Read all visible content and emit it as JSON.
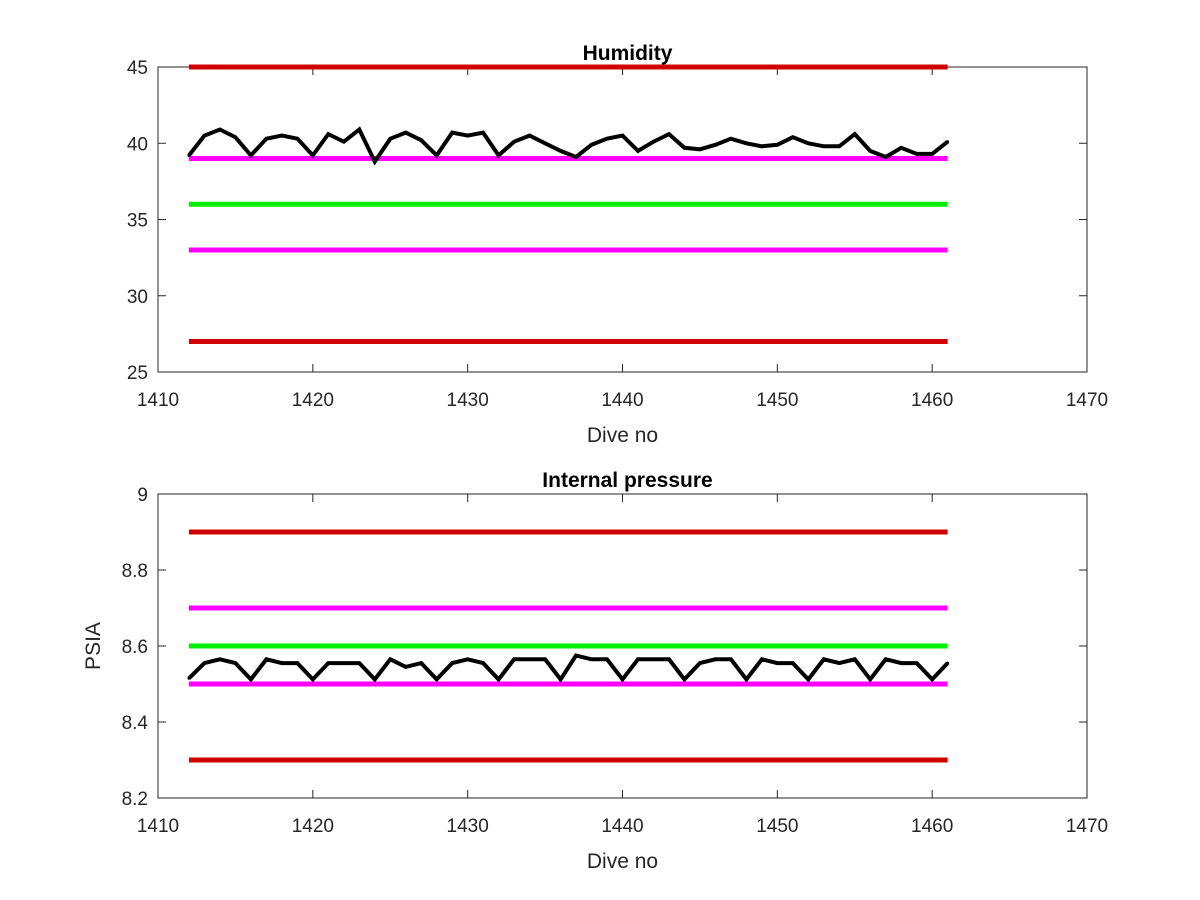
{
  "chart_data": [
    {
      "type": "line",
      "title": "Humidity",
      "xlabel": "Dive no",
      "ylabel": "",
      "xlim": [
        1410,
        1470
      ],
      "ylim": [
        25,
        45
      ],
      "xticks": [
        1410,
        1420,
        1430,
        1440,
        1450,
        1460,
        1470
      ],
      "xtick_labels": [
        "1410",
        "1420",
        "1430",
        "1440",
        "1450",
        "1460",
        "1470"
      ],
      "yticks": [
        25,
        30,
        35,
        40,
        45
      ],
      "ytick_labels": [
        "25",
        "30",
        "35",
        "40",
        "45"
      ],
      "grid": false,
      "reference_lines": [
        {
          "y": 45,
          "x_range": [
            1412,
            1461
          ],
          "color": "#d00000"
        },
        {
          "y": 39,
          "x_range": [
            1412,
            1461
          ],
          "color": "#ff00ff"
        },
        {
          "y": 36,
          "x_range": [
            1412,
            1461
          ],
          "color": "#00ee00"
        },
        {
          "y": 33,
          "x_range": [
            1412,
            1461
          ],
          "color": "#ff00ff"
        },
        {
          "y": 27,
          "x_range": [
            1412,
            1461
          ],
          "color": "#d00000"
        }
      ],
      "series": [
        {
          "color": "#000000",
          "x": [
            1412,
            1413,
            1414,
            1415,
            1416,
            1417,
            1418,
            1419,
            1420,
            1421,
            1422,
            1423,
            1424,
            1425,
            1426,
            1427,
            1428,
            1429,
            1430,
            1431,
            1432,
            1433,
            1434,
            1435,
            1436,
            1437,
            1438,
            1439,
            1440,
            1441,
            1442,
            1443,
            1444,
            1445,
            1446,
            1447,
            1448,
            1449,
            1450,
            1451,
            1452,
            1453,
            1454,
            1455,
            1456,
            1457,
            1458,
            1459,
            1460,
            1461
          ],
          "values": [
            39.2,
            40.5,
            40.9,
            40.4,
            39.2,
            40.3,
            40.5,
            40.3,
            39.2,
            40.6,
            40.1,
            40.9,
            38.8,
            40.3,
            40.7,
            40.2,
            39.2,
            40.7,
            40.5,
            40.7,
            39.2,
            40.1,
            40.5,
            40.0,
            39.5,
            39.1,
            39.9,
            40.3,
            40.5,
            39.5,
            40.1,
            40.6,
            39.7,
            39.6,
            39.9,
            40.3,
            40.0,
            39.8,
            39.9,
            40.4,
            40.0,
            39.8,
            39.8,
            40.6,
            39.5,
            39.1,
            39.7,
            39.3,
            39.3,
            40.1
          ]
        }
      ]
    },
    {
      "type": "line",
      "title": "Internal pressure",
      "xlabel": "Dive no",
      "ylabel": "PSIA",
      "xlim": [
        1410,
        1470
      ],
      "ylim": [
        8.2,
        9.0
      ],
      "xticks": [
        1410,
        1420,
        1430,
        1440,
        1450,
        1460,
        1470
      ],
      "xtick_labels": [
        "1410",
        "1420",
        "1430",
        "1440",
        "1450",
        "1460",
        "1470"
      ],
      "yticks": [
        8.2,
        8.4,
        8.6,
        8.8,
        9.0
      ],
      "ytick_labels": [
        "8.2",
        "8.4",
        "8.6",
        "8.8",
        "9"
      ],
      "grid": false,
      "reference_lines": [
        {
          "y": 8.9,
          "x_range": [
            1412,
            1461
          ],
          "color": "#d00000"
        },
        {
          "y": 8.7,
          "x_range": [
            1412,
            1461
          ],
          "color": "#ff00ff"
        },
        {
          "y": 8.6,
          "x_range": [
            1412,
            1461
          ],
          "color": "#00ee00"
        },
        {
          "y": 8.5,
          "x_range": [
            1412,
            1461
          ],
          "color": "#ff00ff"
        },
        {
          "y": 8.3,
          "x_range": [
            1412,
            1461
          ],
          "color": "#d00000"
        }
      ],
      "series": [
        {
          "color": "#000000",
          "x": [
            1412,
            1413,
            1414,
            1415,
            1416,
            1417,
            1418,
            1419,
            1420,
            1421,
            1422,
            1423,
            1424,
            1425,
            1426,
            1427,
            1428,
            1429,
            1430,
            1431,
            1432,
            1433,
            1434,
            1435,
            1436,
            1437,
            1438,
            1439,
            1440,
            1441,
            1442,
            1443,
            1444,
            1445,
            1446,
            1447,
            1448,
            1449,
            1450,
            1451,
            1452,
            1453,
            1454,
            1455,
            1456,
            1457,
            1458,
            1459,
            1460,
            1461
          ],
          "values": [
            8.515,
            8.555,
            8.565,
            8.555,
            8.512,
            8.565,
            8.555,
            8.555,
            8.512,
            8.555,
            8.555,
            8.555,
            8.512,
            8.565,
            8.545,
            8.555,
            8.512,
            8.555,
            8.565,
            8.555,
            8.512,
            8.565,
            8.565,
            8.565,
            8.512,
            8.575,
            8.565,
            8.565,
            8.512,
            8.565,
            8.565,
            8.565,
            8.512,
            8.555,
            8.565,
            8.565,
            8.512,
            8.565,
            8.555,
            8.555,
            8.512,
            8.565,
            8.555,
            8.565,
            8.512,
            8.565,
            8.555,
            8.555,
            8.512,
            8.555
          ]
        }
      ]
    }
  ]
}
